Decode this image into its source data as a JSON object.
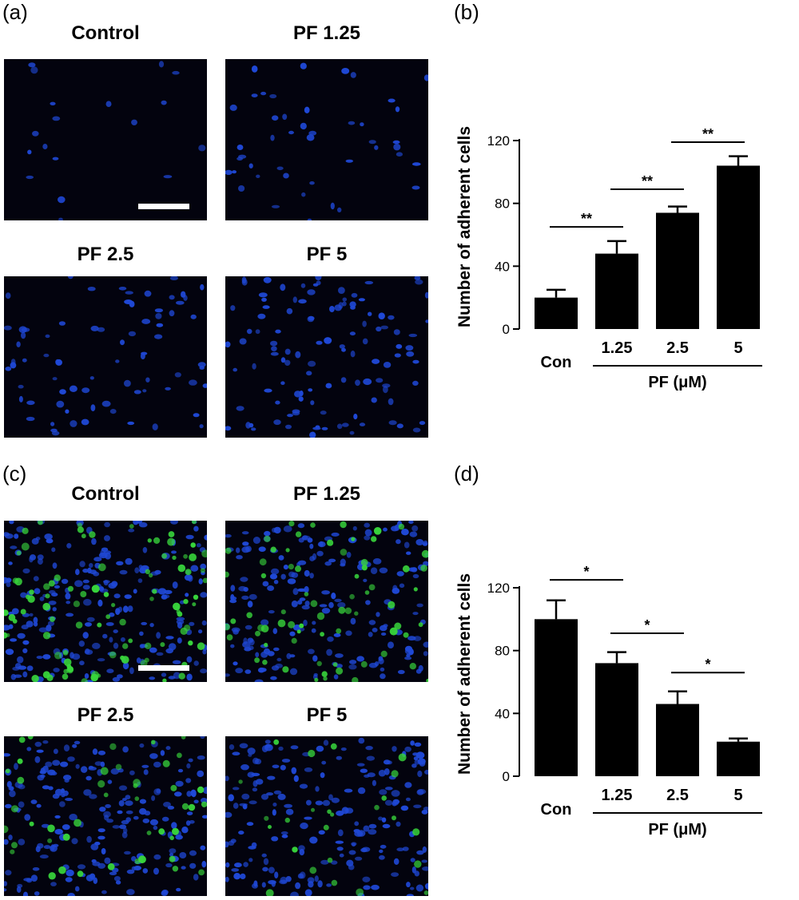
{
  "panels": [
    {
      "letter": "(a)",
      "titles": [
        "Control",
        "PF 1.25",
        "PF 2.5",
        "PF 5"
      ]
    },
    {
      "letter": "(b)"
    },
    {
      "letter": "(c)",
      "titles": [
        "Control",
        "PF 1.25",
        "PF 2.5",
        "PF 5"
      ]
    },
    {
      "letter": "(d)"
    }
  ],
  "colors": {
    "nuclei": "#1f48d6",
    "green_cells": "#38d63c",
    "background": "#03030e",
    "bars": "#000000"
  },
  "chart_data": [
    {
      "type": "bar",
      "categories": [
        "Con",
        "1.25",
        "2.5",
        "5"
      ],
      "values": [
        20,
        48,
        74,
        104
      ],
      "errors": [
        5,
        8,
        4,
        6
      ],
      "ylabel": "Number of adherent cells",
      "yticks": [
        "0",
        "40",
        "80",
        "120"
      ],
      "ylim": [
        0,
        120
      ],
      "group_label": "PF (μM)",
      "significance": [
        {
          "from": 0,
          "to": 1,
          "y": 65,
          "label": "**"
        },
        {
          "from": 1,
          "to": 2,
          "y": 89,
          "label": "**"
        },
        {
          "from": 2,
          "to": 3,
          "y": 119,
          "label": "**"
        }
      ]
    },
    {
      "type": "bar",
      "categories": [
        "Con",
        "1.25",
        "2.5",
        "5"
      ],
      "values": [
        100,
        72,
        46,
        22
      ],
      "errors": [
        12,
        7,
        8,
        2
      ],
      "ylabel": "Number of adherent cells",
      "yticks": [
        "0",
        "40",
        "80",
        "120"
      ],
      "ylim": [
        0,
        120
      ],
      "group_label": "PF (μM)",
      "significance": [
        {
          "from": 0,
          "to": 1,
          "y": 125,
          "label": "*"
        },
        {
          "from": 1,
          "to": 2,
          "y": 91,
          "label": "*"
        },
        {
          "from": 2,
          "to": 3,
          "y": 66,
          "label": "*"
        }
      ]
    }
  ]
}
